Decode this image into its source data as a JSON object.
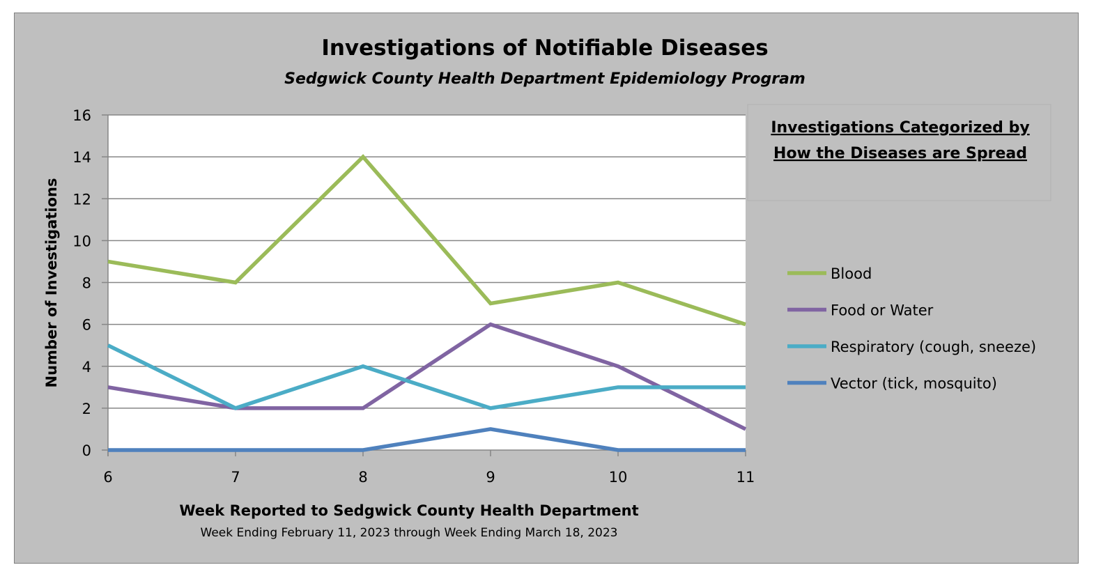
{
  "chart_data": {
    "type": "line",
    "title": "Investigations of Notifiable Diseases",
    "subtitle": "Sedgwick County Health Department Epidemiology Program",
    "xlabel": "Week Reported to Sedgwick County Health Department",
    "xlabel_sub": "Week Ending  February 11, 2023 through Week Ending March 18, 2023",
    "ylabel": "Number of Investigations",
    "x": [
      6,
      7,
      8,
      9,
      10,
      11
    ],
    "ylim": [
      0,
      16
    ],
    "yticks": [
      0,
      2,
      4,
      6,
      8,
      10,
      12,
      14,
      16
    ],
    "grid": true,
    "legend_title": [
      "Investigations Categorized by",
      "How the Diseases are Spread"
    ],
    "legend_position": "right",
    "series": [
      {
        "name": "Blood",
        "color": "#9bbb59",
        "values": [
          9,
          8,
          14,
          7,
          8,
          6
        ]
      },
      {
        "name": "Food or Water",
        "color": "#8064a2",
        "values": [
          3,
          2,
          2,
          6,
          4,
          1
        ]
      },
      {
        "name": "Respiratory (cough, sneeze)",
        "color": "#4bacc6",
        "values": [
          5,
          2,
          4,
          2,
          3,
          3
        ]
      },
      {
        "name": "Vector (tick, mosquito)",
        "color": "#4f81bd",
        "values": [
          0,
          0,
          0,
          1,
          0,
          0
        ]
      }
    ]
  }
}
